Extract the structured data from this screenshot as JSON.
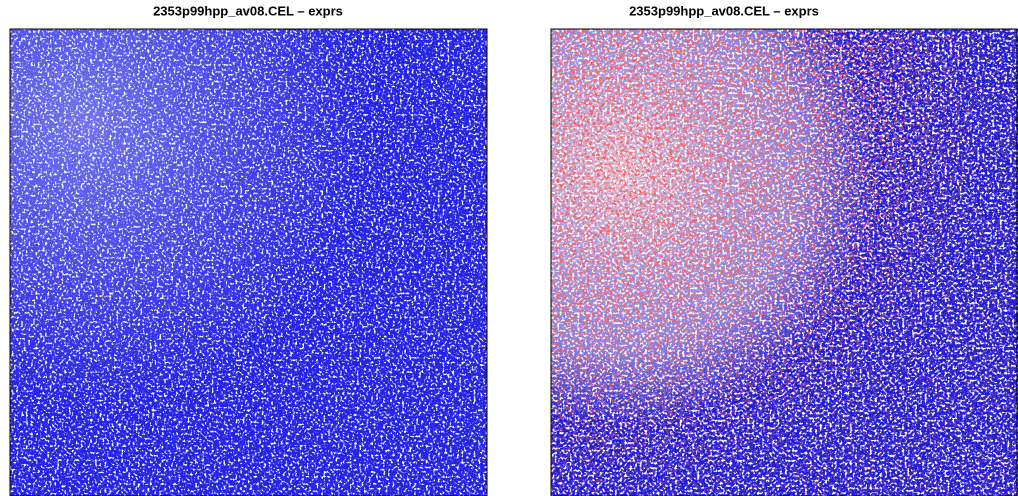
{
  "panels": [
    {
      "title": "2353p99hpp_av08.CEL – exprs"
    },
    {
      "title": "2353p99hpp_av08.CEL – exprs"
    }
  ]
}
